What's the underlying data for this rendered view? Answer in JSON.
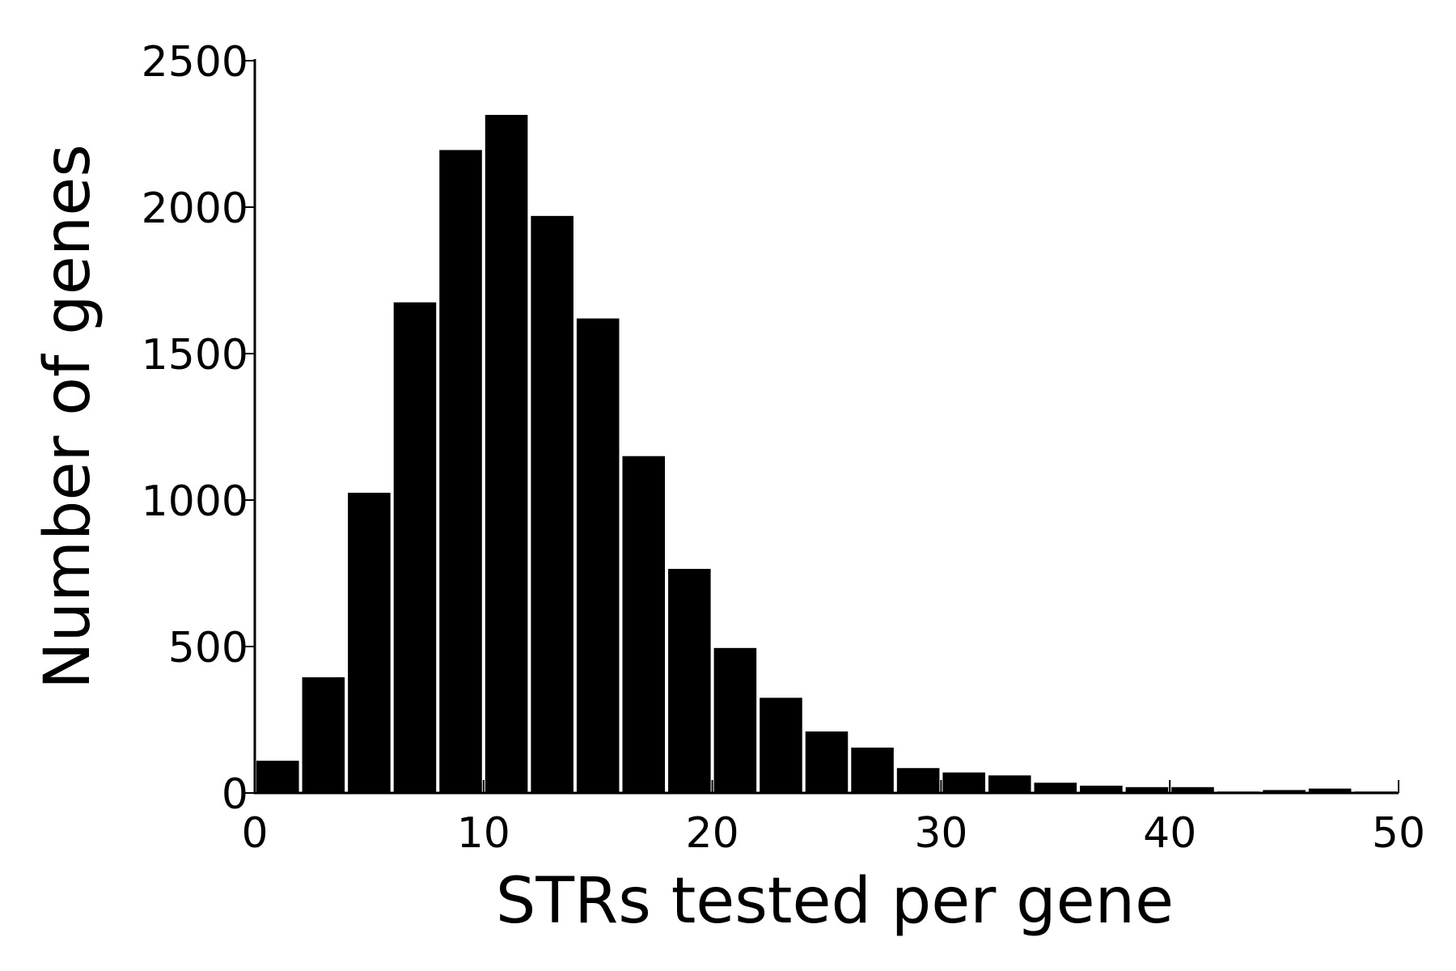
{
  "chart_data": {
    "type": "bar",
    "title": "",
    "xlabel": "STRs tested per gene",
    "ylabel": "Number of genes",
    "xlim": [
      0,
      50
    ],
    "ylim": [
      0,
      2500
    ],
    "bin_width": 2,
    "x": [
      0,
      2,
      4,
      6,
      8,
      10,
      12,
      14,
      16,
      18,
      20,
      22,
      24,
      26,
      28,
      30,
      32,
      34,
      36,
      38,
      40,
      42,
      44,
      46,
      48
    ],
    "values": [
      110,
      395,
      1025,
      1675,
      2195,
      2315,
      1970,
      1620,
      1150,
      765,
      495,
      325,
      210,
      155,
      85,
      70,
      60,
      35,
      25,
      20,
      20,
      5,
      10,
      15,
      5
    ],
    "xticks": [
      "0",
      "10",
      "20",
      "30",
      "40",
      "50"
    ],
    "yticks": [
      "0",
      "500",
      "1000",
      "1500",
      "2000",
      "2500"
    ],
    "bar_color": "#000000",
    "grid": false,
    "legend": "none"
  }
}
